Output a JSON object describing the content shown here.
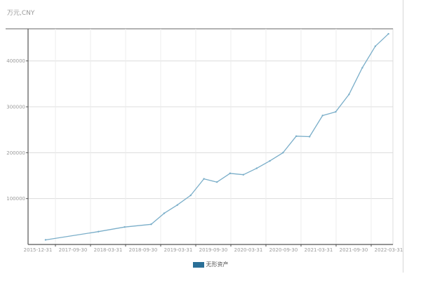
{
  "title": "",
  "unit": "万元,CNY",
  "colors": {
    "series": "#7aaec9",
    "legend": "#2a6f97",
    "grid": "#dcdcdc",
    "axis": "#555555"
  },
  "chart_data": {
    "type": "line",
    "ylim": [
      0,
      470000
    ],
    "y_ticks": [
      100000,
      200000,
      300000,
      400000
    ],
    "y_tick_labels": [
      "100000",
      "200000",
      "300000",
      "400000"
    ],
    "x_tick_labels": [
      "2015-12-31",
      "2017-09-30",
      "2018-03-31",
      "2018-09-30",
      "2019-03-31",
      "2019-09-30",
      "2020-03-31",
      "2020-09-30",
      "2021-03-31",
      "2021-09-30",
      "2022-03-31"
    ],
    "grid": true,
    "legend_position": "bottom-center",
    "series": [
      {
        "name": "无形资产",
        "points": [
          {
            "x": "2015-12-31",
            "y": 10000
          },
          {
            "x": "2016-12-31",
            "y": 28000
          },
          {
            "x": "2017-06-30",
            "y": 38000
          },
          {
            "x": "2017-12-31",
            "y": 44000
          },
          {
            "x": "2018-03-31",
            "y": 68000
          },
          {
            "x": "2018-06-30",
            "y": 86000
          },
          {
            "x": "2018-09-30",
            "y": 107000
          },
          {
            "x": "2018-12-31",
            "y": 143000
          },
          {
            "x": "2019-03-31",
            "y": 136000
          },
          {
            "x": "2019-06-30",
            "y": 155000
          },
          {
            "x": "2019-09-30",
            "y": 152000
          },
          {
            "x": "2019-12-31",
            "y": 166000
          },
          {
            "x": "2020-03-31",
            "y": 182000
          },
          {
            "x": "2020-06-30",
            "y": 200000
          },
          {
            "x": "2020-09-30",
            "y": 236000
          },
          {
            "x": "2020-12-31",
            "y": 235000
          },
          {
            "x": "2021-03-31",
            "y": 281000
          },
          {
            "x": "2021-06-30",
            "y": 289000
          },
          {
            "x": "2021-09-30",
            "y": 327000
          },
          {
            "x": "2021-12-31",
            "y": 385000
          },
          {
            "x": "2022-03-31",
            "y": 432000
          },
          {
            "x": "2022-06-30",
            "y": 459000
          }
        ]
      }
    ]
  }
}
